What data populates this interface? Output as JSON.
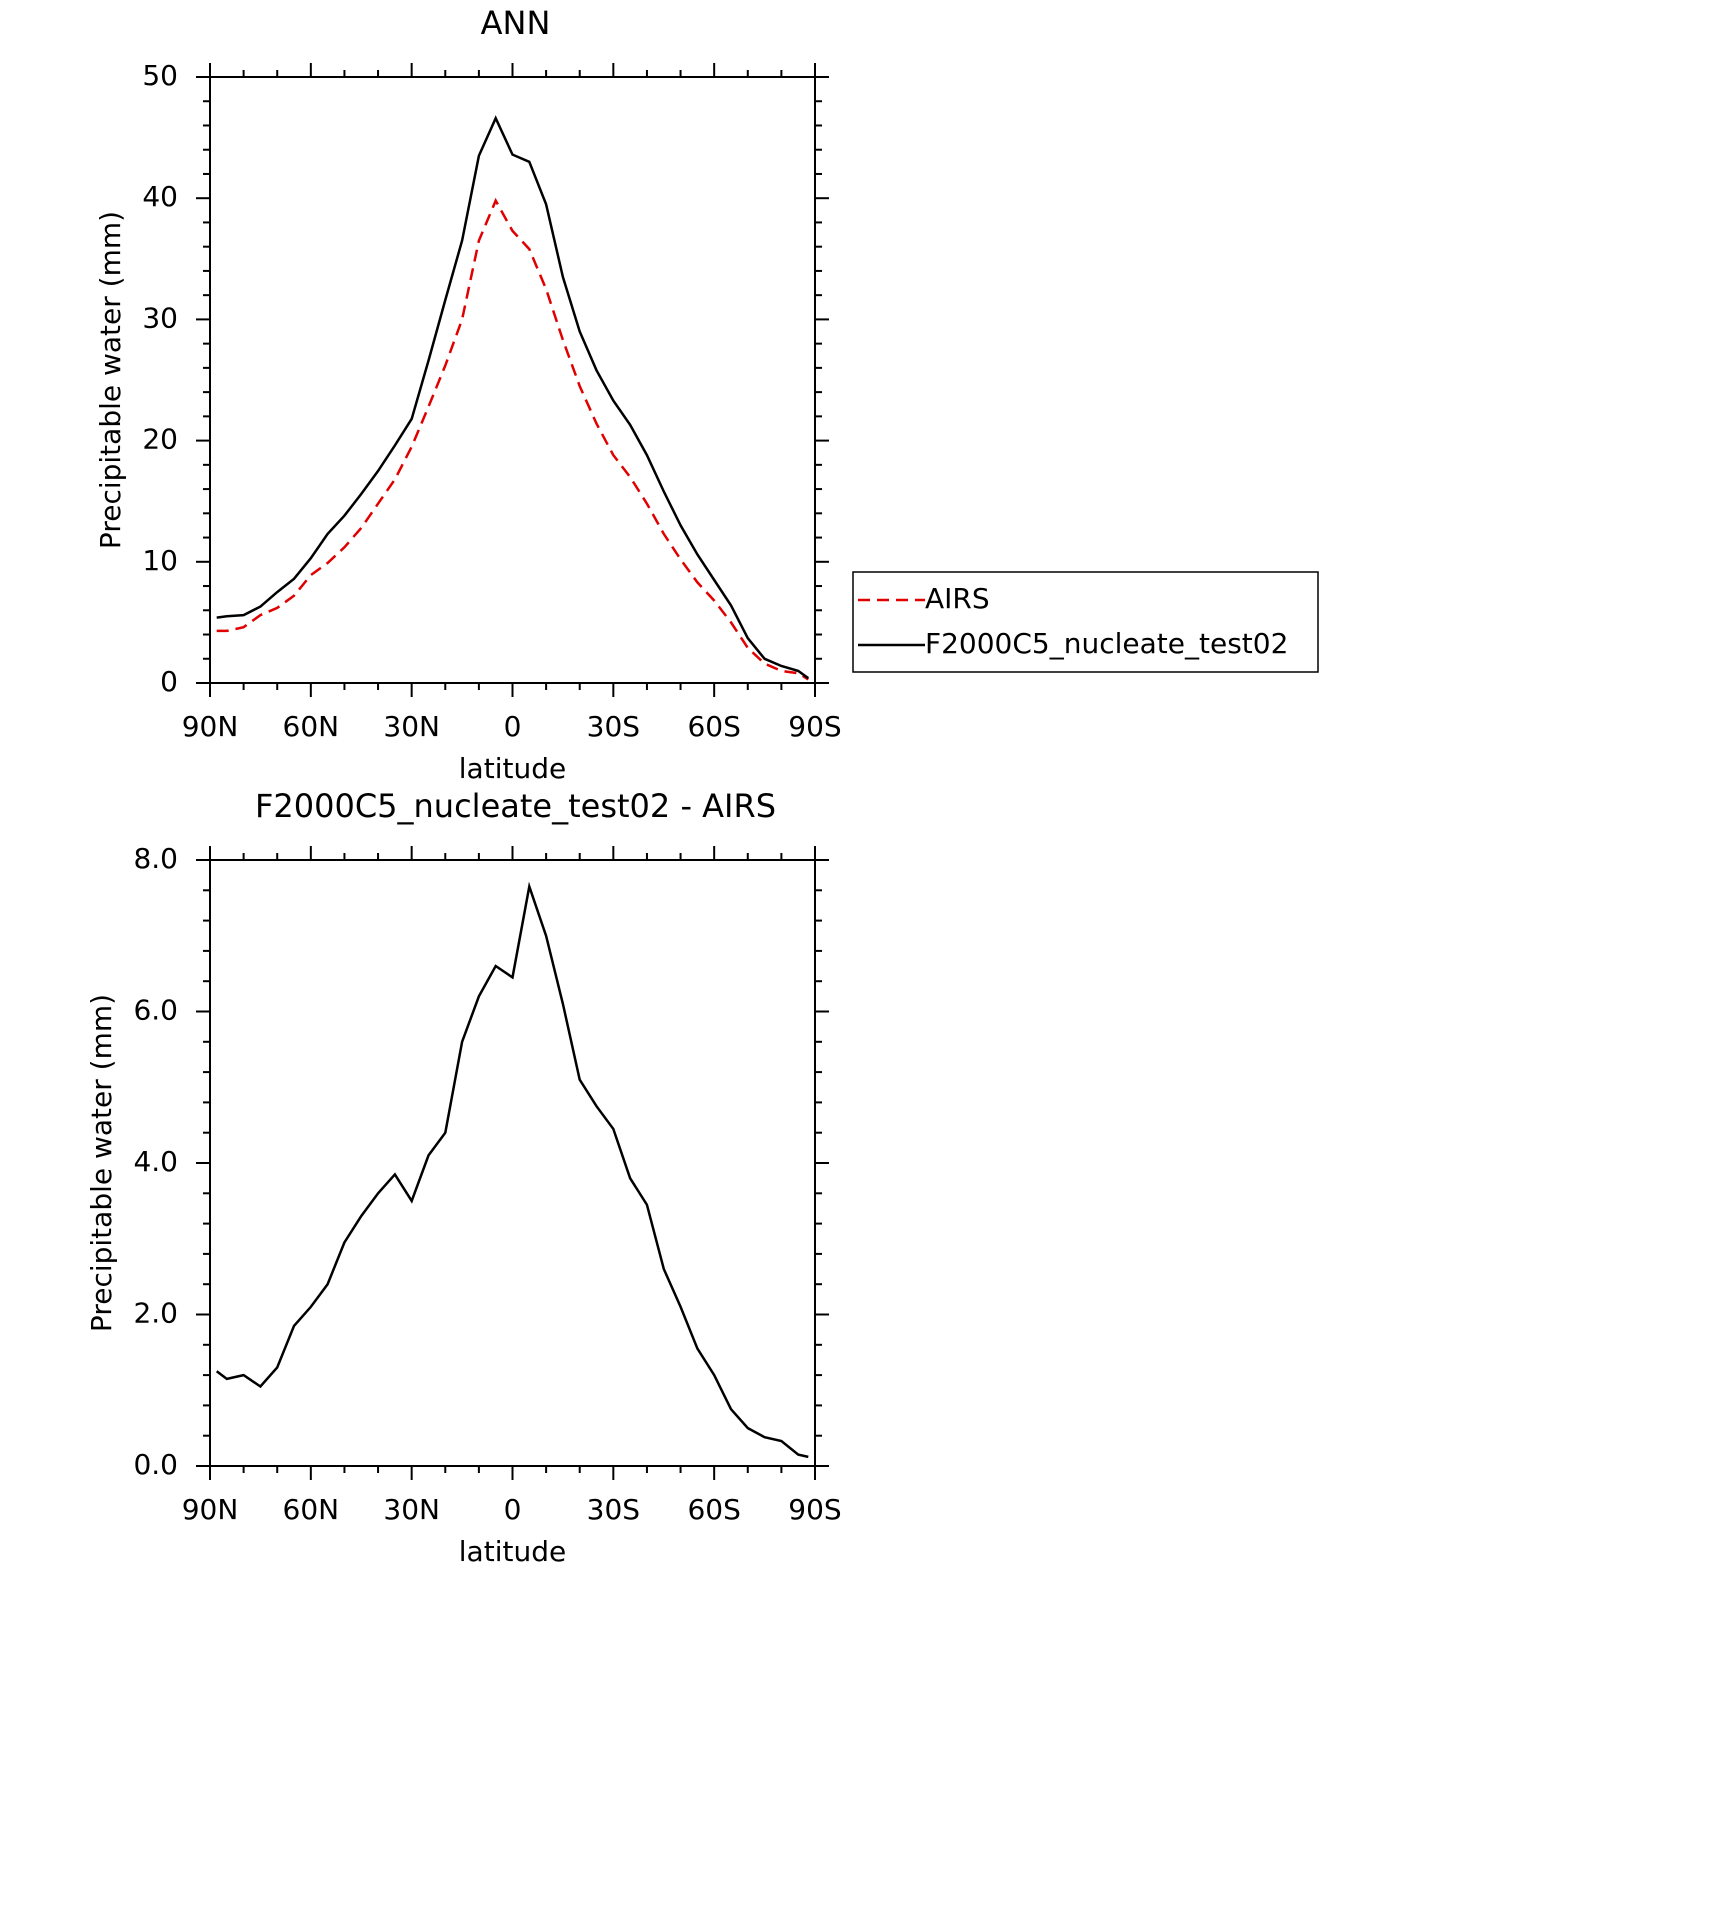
{
  "chart_data": [
    {
      "type": "line",
      "title": "ANN",
      "xlabel": "latitude",
      "ylabel": "Precipitable water (mm)",
      "x": [
        88,
        85,
        80,
        75,
        70,
        65,
        60,
        55,
        50,
        45,
        40,
        35,
        30,
        25,
        20,
        15,
        10,
        5,
        0,
        -5,
        -10,
        -15,
        -20,
        -25,
        -30,
        -35,
        -40,
        -45,
        -50,
        -55,
        -60,
        -65,
        -70,
        -75,
        -80,
        -85,
        -88
      ],
      "series": [
        {
          "name": "AIRS",
          "color": "#e00000",
          "linestyle": "dashed",
          "values": [
            4.3,
            4.3,
            4.6,
            5.6,
            6.2,
            7.2,
            8.9,
            9.9,
            11.2,
            12.8,
            14.8,
            16.8,
            19.5,
            22.8,
            26.2,
            30,
            36.5,
            39.8,
            37.3,
            35.8,
            32.5,
            28.3,
            24.5,
            21.4,
            18.8,
            17,
            14.8,
            12.3,
            10.2,
            8.3,
            6.8,
            5.0,
            2.9,
            1.6,
            1.0,
            0.8,
            0.3
          ]
        },
        {
          "name": "F2000C5_nucleate_test02",
          "color": "#000000",
          "linestyle": "solid",
          "values": [
            5.4,
            5.5,
            5.6,
            6.3,
            7.5,
            8.6,
            10.3,
            12.3,
            13.8,
            15.6,
            17.5,
            19.6,
            21.8,
            26.6,
            31.6,
            36.5,
            43.5,
            46.6,
            43.6,
            43,
            39.5,
            33.5,
            29,
            25.8,
            23.3,
            21.3,
            18.8,
            15.8,
            13,
            10.6,
            8.5,
            6.4,
            3.7,
            2.0,
            1.4,
            1.0,
            0.4
          ]
        }
      ],
      "xlim": [
        90,
        -90
      ],
      "xticks": [
        {
          "value": 90,
          "label": "90N"
        },
        {
          "value": 60,
          "label": "60N"
        },
        {
          "value": 30,
          "label": "30N"
        },
        0,
        {
          "value": -30,
          "label": "30S"
        },
        {
          "value": -60,
          "label": "60S"
        },
        {
          "value": -90,
          "label": "90S"
        }
      ],
      "ylim": [
        0,
        50
      ],
      "yticks": [
        0,
        10,
        20,
        30,
        40,
        50
      ],
      "legend": "right"
    },
    {
      "type": "line",
      "title": "F2000C5_nucleate_test02 - AIRS",
      "xlabel": "latitude",
      "ylabel": "Precipitable water (mm)",
      "x": [
        88,
        85,
        80,
        75,
        70,
        65,
        60,
        55,
        50,
        45,
        40,
        35,
        30,
        25,
        20,
        15,
        10,
        5,
        0,
        -5,
        -10,
        -15,
        -20,
        -25,
        -30,
        -35,
        -40,
        -45,
        -50,
        -55,
        -60,
        -65,
        -70,
        -75,
        -80,
        -85,
        -88
      ],
      "values": [
        1.25,
        1.15,
        1.2,
        1.05,
        1.3,
        1.85,
        2.1,
        2.4,
        2.95,
        3.3,
        3.6,
        3.85,
        3.5,
        4.1,
        4.4,
        5.6,
        6.2,
        6.6,
        6.45,
        7.65,
        7.0,
        6.1,
        5.1,
        4.75,
        4.45,
        3.8,
        3.45,
        2.6,
        2.1,
        1.55,
        1.2,
        0.75,
        0.5,
        0.38,
        0.33,
        0.15,
        0.12
      ],
      "color": "#000000",
      "xlim": [
        90,
        -90
      ],
      "xticks": [
        {
          "value": 90,
          "label": "90N"
        },
        {
          "value": 60,
          "label": "60N"
        },
        {
          "value": 30,
          "label": "30N"
        },
        0,
        {
          "value": -30,
          "label": "30S"
        },
        {
          "value": -60,
          "label": "60S"
        },
        {
          "value": -90,
          "label": "90S"
        }
      ],
      "ylim": [
        0,
        8
      ],
      "yticks": [
        {
          "value": 0,
          "label": "0.0"
        },
        {
          "value": 2,
          "label": "2.0"
        },
        {
          "value": 4,
          "label": "4.0"
        },
        {
          "value": 6,
          "label": "6.0"
        },
        {
          "value": 8,
          "label": "8.0"
        }
      ]
    }
  ]
}
